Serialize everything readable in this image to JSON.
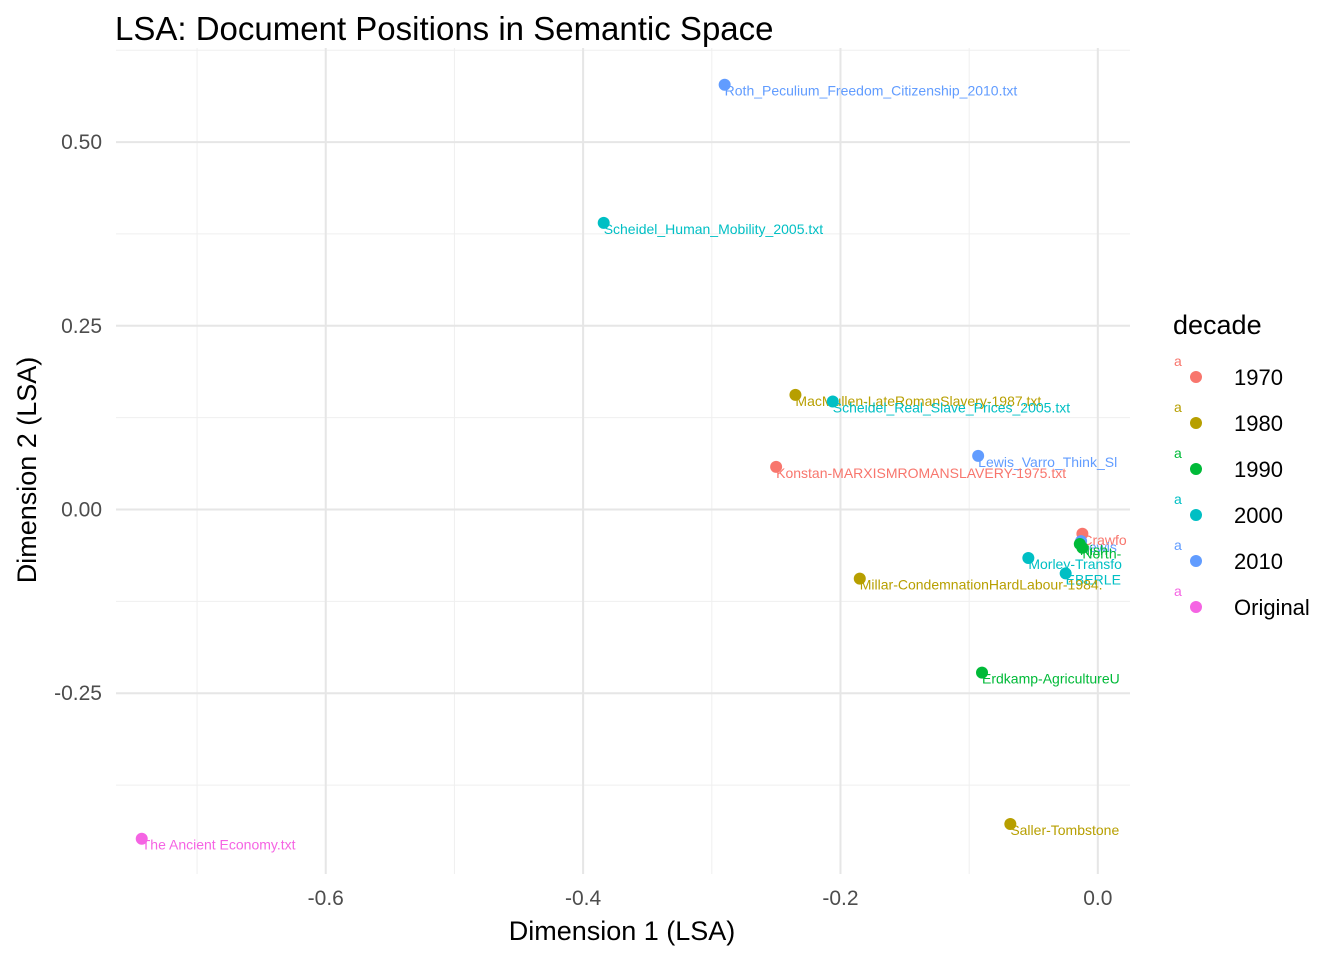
{
  "chart_data": {
    "type": "scatter",
    "title": "LSA: Document Positions in Semantic Space",
    "xlabel": "Dimension 1 (LSA)",
    "ylabel": "Dimension 2 (LSA)",
    "xlim": [
      -0.763,
      0.025
    ],
    "ylim": [
      -0.496,
      0.628
    ],
    "x_ticks": [
      -0.6,
      -0.4,
      -0.2,
      0.0
    ],
    "x_tick_labels": [
      "-0.6",
      "-0.4",
      "-0.2",
      "0.0"
    ],
    "y_ticks": [
      0.5,
      0.25,
      0.0,
      -0.25
    ],
    "y_tick_labels": [
      "0.50",
      "0.25",
      "0.00",
      "-0.25"
    ],
    "grid": true,
    "legend": {
      "title": "decade",
      "position": "right",
      "key_glyph": "a",
      "entries": [
        {
          "label": "1970",
          "color": "#F8766D"
        },
        {
          "label": "1980",
          "color": "#B79F00"
        },
        {
          "label": "1990",
          "color": "#00BA38"
        },
        {
          "label": "2000",
          "color": "#00BFC4"
        },
        {
          "label": "2010",
          "color": "#619CFF"
        },
        {
          "label": "Original",
          "color": "#F564E3"
        }
      ]
    },
    "points": [
      {
        "x": -0.29,
        "y": 0.578,
        "decade": "2010",
        "label": "Roth_Peculium_Freedom_Citizenship_2010.txt"
      },
      {
        "x": -0.384,
        "y": 0.39,
        "decade": "2000",
        "label": "Scheidel_Human_Mobility_2005.txt"
      },
      {
        "x": -0.235,
        "y": 0.156,
        "decade": "1980",
        "label": "MacMullen-LateRomanSlavery-1987.txt"
      },
      {
        "x": -0.206,
        "y": 0.147,
        "decade": "2000",
        "label": "Scheidel_Real_Slave_Prices_2005.txt"
      },
      {
        "x": -0.093,
        "y": 0.073,
        "decade": "2010",
        "label": "Lewis_Varro_Think_Sl"
      },
      {
        "x": -0.25,
        "y": 0.058,
        "decade": "1970",
        "label": "Konstan-MARXISMROMANSLAVERY-1975.txt"
      },
      {
        "x": -0.012,
        "y": -0.033,
        "decade": "1970",
        "label": "Crawfo"
      },
      {
        "x": -0.013,
        "y": -0.043,
        "decade": "2010",
        "label": "Lewis"
      },
      {
        "x": -0.014,
        "y": -0.047,
        "decade": "1990",
        "label": "Nish"
      },
      {
        "x": -0.012,
        "y": -0.052,
        "decade": "1990",
        "label": "North-"
      },
      {
        "x": -0.054,
        "y": -0.066,
        "decade": "2000",
        "label": "Morley-Transfo"
      },
      {
        "x": -0.025,
        "y": -0.087,
        "decade": "2000",
        "label": "EBERLE"
      },
      {
        "x": -0.185,
        "y": -0.094,
        "decade": "1980",
        "label": "Millar-CondemnationHardLabour-1984."
      },
      {
        "x": -0.09,
        "y": -0.222,
        "decade": "1990",
        "label": "Erdkamp-AgricultureU"
      },
      {
        "x": -0.068,
        "y": -0.428,
        "decade": "1980",
        "label": "Saller-Tombstone"
      },
      {
        "x": -0.743,
        "y": -0.448,
        "decade": "Original",
        "label": "The Ancient Economy.txt"
      }
    ]
  }
}
